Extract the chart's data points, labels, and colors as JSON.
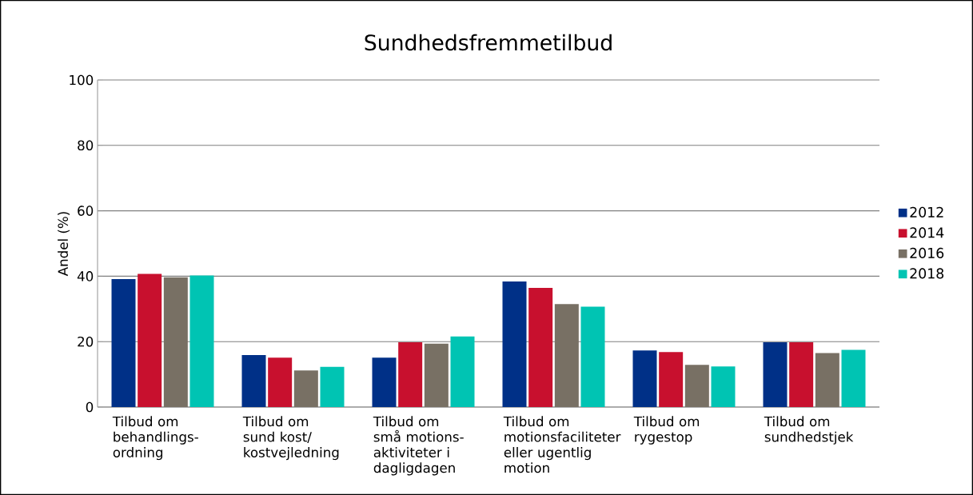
{
  "chart_data": {
    "type": "bar",
    "title": "Sundhedsfremmetilbud",
    "ylabel": "Andel (%)",
    "categories": [
      "Tilbud om behandlings-ordning",
      "Tilbud om sund kost/ kostvejledning",
      "Tilbud om små motions-aktiviteter i dagligdagen",
      "Tilbud om motionsfaciliteter eller ugentlig motion",
      "Tilbud om rygestop",
      "Tilbud om sundhedstjek"
    ],
    "series": [
      {
        "name": "2012",
        "color": "#003087",
        "values": [
          39.1,
          15.9,
          15.1,
          38.4,
          17.3,
          19.8
        ]
      },
      {
        "name": "2014",
        "color": "#c8102e",
        "values": [
          40.7,
          15.1,
          19.8,
          36.4,
          16.8,
          19.8
        ]
      },
      {
        "name": "2016",
        "color": "#787064",
        "values": [
          39.7,
          11.2,
          19.4,
          31.5,
          12.9,
          16.5
        ]
      },
      {
        "name": "2018",
        "color": "#00c4b3",
        "values": [
          40.2,
          12.3,
          21.6,
          30.7,
          12.4,
          17.5
        ]
      }
    ],
    "ylim": [
      0,
      100
    ],
    "yticks": [
      0,
      20,
      40,
      60,
      80,
      100
    ],
    "grid": "y",
    "legend": "right"
  }
}
